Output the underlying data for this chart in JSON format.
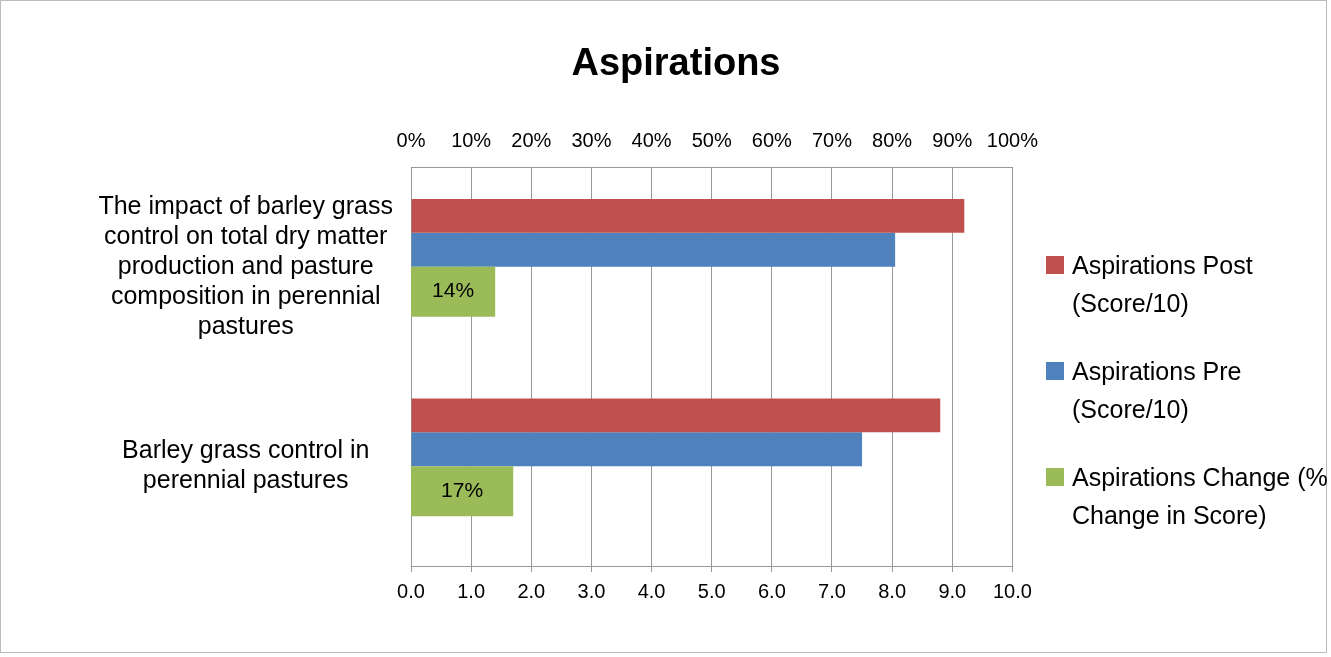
{
  "chart_data": {
    "type": "bar",
    "orientation": "horizontal",
    "title": "Aspirations",
    "categories": [
      "The impact of barley grass control on total dry matter production and pasture composition in perennial pastures",
      "Barley grass control in perennial pastures"
    ],
    "series": [
      {
        "name": "Aspirations Post (Score/10)",
        "color": "#c0504d",
        "values": [
          9.2,
          8.8
        ]
      },
      {
        "name": "Aspirations Pre (Score/10)",
        "color": "#4f81bd",
        "values": [
          8.05,
          7.5
        ]
      },
      {
        "name": "Aspirations Change (% Change in Score)",
        "color": "#9bbb59",
        "values": [
          14,
          17
        ],
        "axis": "x2",
        "value_labels": [
          "14%",
          "17%"
        ]
      }
    ],
    "xlim": [
      0,
      10
    ],
    "xticks": [
      {
        "value": 0,
        "label": "0.0"
      },
      {
        "value": 1,
        "label": "1.0"
      },
      {
        "value": 2,
        "label": "2.0"
      },
      {
        "value": 3,
        "label": "3.0"
      },
      {
        "value": 4,
        "label": "4.0"
      },
      {
        "value": 5,
        "label": "5.0"
      },
      {
        "value": 6,
        "label": "6.0"
      },
      {
        "value": 7,
        "label": "7.0"
      },
      {
        "value": 8,
        "label": "8.0"
      },
      {
        "value": 9,
        "label": "9.0"
      },
      {
        "value": 10,
        "label": "10.0"
      }
    ],
    "x2lim": [
      0,
      100
    ],
    "x2ticks": [
      {
        "value": 0,
        "label": "0%"
      },
      {
        "value": 10,
        "label": "10%"
      },
      {
        "value": 20,
        "label": "20%"
      },
      {
        "value": 30,
        "label": "30%"
      },
      {
        "value": 40,
        "label": "40%"
      },
      {
        "value": 50,
        "label": "50%"
      },
      {
        "value": 60,
        "label": "60%"
      },
      {
        "value": 70,
        "label": "70%"
      },
      {
        "value": 80,
        "label": "80%"
      },
      {
        "value": 90,
        "label": "90%"
      },
      {
        "value": 100,
        "label": "100%"
      }
    ],
    "grid": "x",
    "legend": "right"
  }
}
